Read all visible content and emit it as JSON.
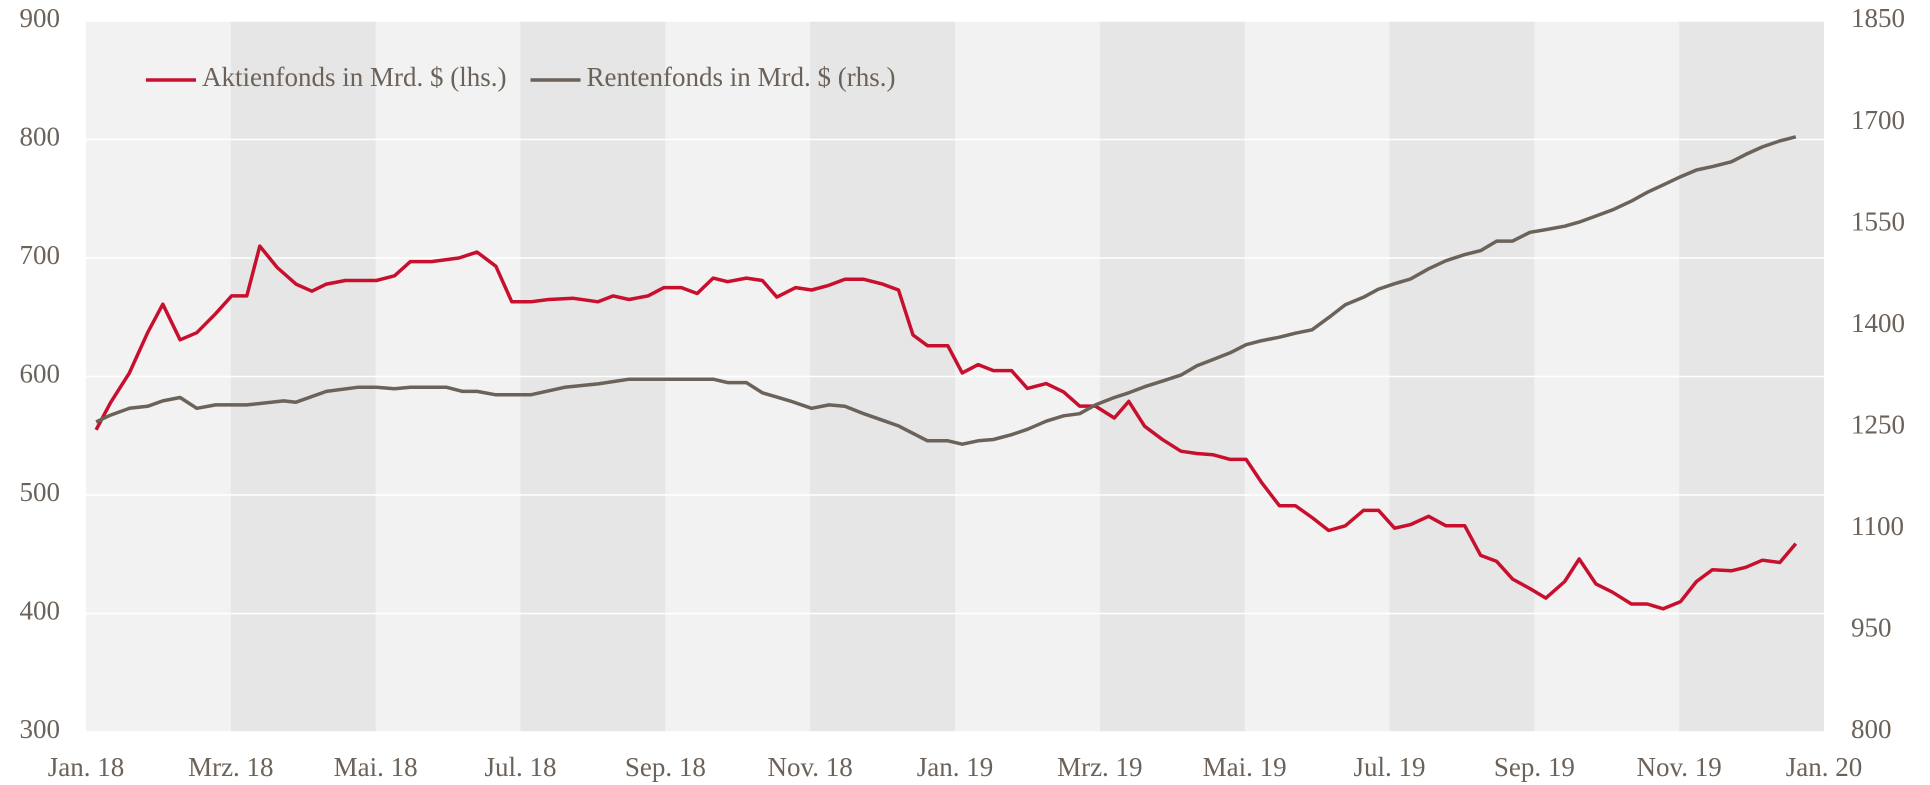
{
  "chart_data": {
    "type": "line",
    "xlim": [
      0,
      24
    ],
    "xticks": [
      {
        "value": 0,
        "label": "Jan. 18"
      },
      {
        "value": 2,
        "label": "Mrz. 18"
      },
      {
        "value": 4,
        "label": "Mai. 18"
      },
      {
        "value": 6,
        "label": "Jul. 18"
      },
      {
        "value": 8,
        "label": "Sep. 18"
      },
      {
        "value": 10,
        "label": "Nov. 18"
      },
      {
        "value": 12,
        "label": "Jan. 19"
      },
      {
        "value": 14,
        "label": "Mrz. 19"
      },
      {
        "value": 16,
        "label": "Mai. 19"
      },
      {
        "value": 18,
        "label": "Jul. 19"
      },
      {
        "value": 20,
        "label": "Sep. 19"
      },
      {
        "value": 22,
        "label": "Nov. 19"
      },
      {
        "value": 24,
        "label": "Jan. 20"
      }
    ],
    "ylim": [
      300,
      900
    ],
    "yticks": [
      300,
      400,
      500,
      600,
      700,
      800,
      900
    ],
    "y2lim": [
      800,
      1850
    ],
    "y2ticks": [
      800,
      950,
      1100,
      1250,
      1400,
      1550,
      1700,
      1850
    ],
    "grid": true,
    "legend": "top-left",
    "series": [
      {
        "name": "Aktienfonds in Mrd. $ (lhs.)",
        "color": "#c8102e",
        "x": [
          0.14,
          0.34,
          0.6,
          0.85,
          1.06,
          1.3,
          1.53,
          1.79,
          2.01,
          2.22,
          2.4,
          2.64,
          2.9,
          3.12,
          3.32,
          3.58,
          4.01,
          4.26,
          4.48,
          4.77,
          5.15,
          5.4,
          5.66,
          5.88,
          6.14,
          6.39,
          6.73,
          7.07,
          7.28,
          7.5,
          7.76,
          7.98,
          8.22,
          8.44,
          8.66,
          8.86,
          9.12,
          9.34,
          9.54,
          9.8,
          10.02,
          10.26,
          10.48,
          10.74,
          11.0,
          11.22,
          11.42,
          11.62,
          11.9,
          12.1,
          12.32,
          12.53,
          12.78,
          13.0,
          13.26,
          13.5,
          13.72,
          13.94,
          14.2,
          14.4,
          14.62,
          14.86,
          15.12,
          15.34,
          15.56,
          15.8,
          16.02,
          16.24,
          16.48,
          16.7,
          16.93,
          17.16,
          17.39,
          17.64,
          17.85,
          18.07,
          18.29,
          18.54,
          18.78,
          19.04,
          19.26,
          19.48,
          19.7,
          19.94,
          20.16,
          20.42,
          20.62,
          20.85,
          21.08,
          21.34,
          21.56,
          21.78,
          22.02,
          22.24,
          22.46,
          22.72,
          22.92,
          23.15,
          23.39,
          23.61
        ],
        "values": [
          555,
          578,
          603,
          637,
          661,
          631,
          637,
          653,
          668,
          668,
          710,
          692,
          678,
          672,
          678,
          681,
          681,
          685,
          697,
          697,
          700,
          705,
          693,
          663,
          663,
          665,
          666,
          663,
          668,
          665,
          668,
          675,
          675,
          670,
          683,
          680,
          683,
          681,
          667,
          675,
          673,
          677,
          682,
          682,
          678,
          673,
          635,
          626,
          626,
          603,
          610,
          605,
          605,
          590,
          594,
          587,
          575,
          575,
          565,
          579,
          558,
          547,
          537,
          535,
          534,
          530,
          530,
          510,
          491,
          491,
          481,
          470,
          474,
          487,
          487,
          472,
          475,
          482,
          474,
          474,
          449,
          444,
          429,
          421,
          413,
          427,
          446,
          425,
          418,
          408,
          408,
          404,
          410,
          427,
          437,
          436,
          439,
          445,
          443,
          459
        ]
      },
      {
        "name": "Rentenfonds in Mrd. $ (rhs.)",
        "color": "#6b625a",
        "axis": "y2",
        "x": [
          0.14,
          0.34,
          0.6,
          0.85,
          1.06,
          1.3,
          1.53,
          1.79,
          2.22,
          2.73,
          2.9,
          3.32,
          3.75,
          4.01,
          4.26,
          4.48,
          4.98,
          5.2,
          5.4,
          5.66,
          6.14,
          6.61,
          7.07,
          7.5,
          8.66,
          8.86,
          9.12,
          9.34,
          9.72,
          10.02,
          10.26,
          10.48,
          10.74,
          11.22,
          11.62,
          11.9,
          12.1,
          12.32,
          12.53,
          12.78,
          13.0,
          13.26,
          13.5,
          13.72,
          13.94,
          14.2,
          14.4,
          14.62,
          14.86,
          15.12,
          15.34,
          15.56,
          15.8,
          16.02,
          16.24,
          16.48,
          16.7,
          16.93,
          17.16,
          17.39,
          17.64,
          17.85,
          18.07,
          18.29,
          18.54,
          18.78,
          19.04,
          19.26,
          19.48,
          19.7,
          19.94,
          20.16,
          20.42,
          20.62,
          20.85,
          21.08,
          21.34,
          21.56,
          21.78,
          22.02,
          22.24,
          22.46,
          22.72,
          22.92,
          23.15,
          23.39,
          23.61
        ],
        "values": [
          1258,
          1268,
          1278,
          1281,
          1289,
          1294,
          1278,
          1283,
          1283,
          1289,
          1287,
          1303,
          1309,
          1309,
          1307,
          1309,
          1309,
          1303,
          1303,
          1298,
          1298,
          1309,
          1314,
          1321,
          1321,
          1316,
          1316,
          1301,
          1289,
          1278,
          1283,
          1281,
          1270,
          1252,
          1230,
          1230,
          1225,
          1230,
          1232,
          1239,
          1247,
          1259,
          1267,
          1270,
          1283,
          1294,
          1301,
          1310,
          1318,
          1327,
          1341,
          1350,
          1360,
          1372,
          1378,
          1383,
          1389,
          1394,
          1412,
          1431,
          1442,
          1454,
          1462,
          1469,
          1484,
          1496,
          1505,
          1511,
          1525,
          1525,
          1538,
          1542,
          1547,
          1553,
          1562,
          1571,
          1584,
          1597,
          1608,
          1620,
          1630,
          1635,
          1642,
          1653,
          1664,
          1673,
          1679
        ]
      }
    ]
  }
}
